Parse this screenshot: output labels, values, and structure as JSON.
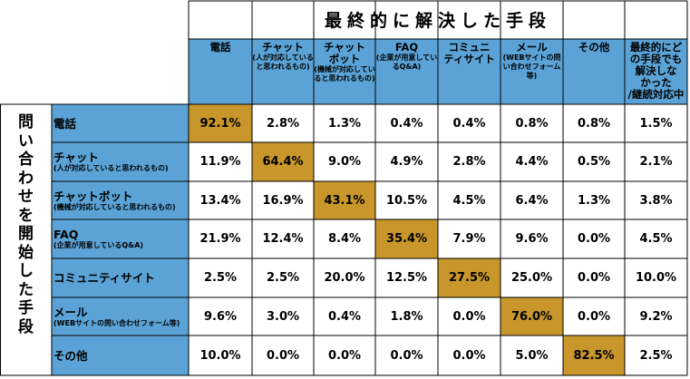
{
  "chart_data": {
    "type": "table",
    "title": "最終的に解決した手段",
    "row_axis_title": "問い合わせを開始した手段",
    "columns": [
      {
        "main": "電話",
        "sub": ""
      },
      {
        "main": "チャット",
        "sub": "(人が対応していると思われるもの)"
      },
      {
        "main": "チャット\nボット",
        "sub": "(機械が対応していると思われるもの)"
      },
      {
        "main": "FAQ",
        "sub": "(企業が用意しているQ&A)"
      },
      {
        "main": "コミュニ\nティサイト",
        "sub": ""
      },
      {
        "main": "メール",
        "sub": "(WEBサイトの問い合わせフォーム等)"
      },
      {
        "main": "その他",
        "sub": ""
      },
      {
        "main": "最終的にど\nの手段でも\n解決しな\nかった\n/継続対応中",
        "sub": ""
      }
    ],
    "rows": [
      {
        "main": "電話",
        "sub": "",
        "values": [
          "92.1%",
          "2.8%",
          "1.3%",
          "0.4%",
          "0.4%",
          "0.8%",
          "0.8%",
          "1.5%"
        ]
      },
      {
        "main": "チャット",
        "sub": "(人が対応していると思われるもの)",
        "values": [
          "11.9%",
          "64.4%",
          "9.0%",
          "4.9%",
          "2.8%",
          "4.4%",
          "0.5%",
          "2.1%"
        ]
      },
      {
        "main": "チャットボット",
        "sub": "(機械が対応していると思われるもの)",
        "values": [
          "13.4%",
          "16.9%",
          "43.1%",
          "10.5%",
          "4.5%",
          "6.4%",
          "1.3%",
          "3.8%"
        ]
      },
      {
        "main": "FAQ",
        "sub": "(企業が用意しているQ&A)",
        "values": [
          "21.9%",
          "12.4%",
          "8.4%",
          "35.4%",
          "7.9%",
          "9.6%",
          "0.0%",
          "4.5%"
        ]
      },
      {
        "main": "コミュニティサイト",
        "sub": "",
        "values": [
          "2.5%",
          "2.5%",
          "20.0%",
          "12.5%",
          "27.5%",
          "25.0%",
          "0.0%",
          "10.0%"
        ]
      },
      {
        "main": "メール",
        "sub": "(WEBサイトの問い合わせフォーム等)",
        "values": [
          "9.6%",
          "3.0%",
          "0.4%",
          "1.8%",
          "0.0%",
          "76.0%",
          "0.0%",
          "9.2%"
        ]
      },
      {
        "main": "その他",
        "sub": "",
        "values": [
          "10.0%",
          "0.0%",
          "0.0%",
          "0.0%",
          "0.0%",
          "5.0%",
          "82.5%",
          "2.5%"
        ]
      }
    ],
    "highlight": "diagonal",
    "colors": {
      "header": "#5ba3d6",
      "highlight": "#c8962a",
      "cell": "#ffffff"
    }
  }
}
